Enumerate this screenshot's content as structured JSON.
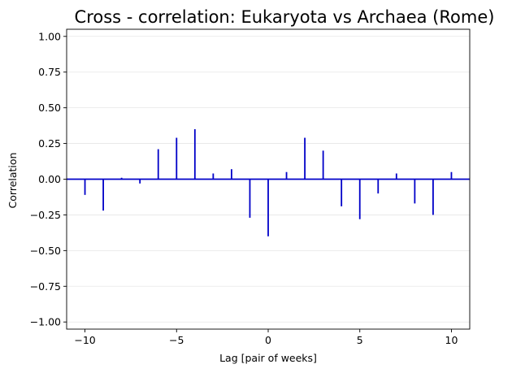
{
  "chart_data": {
    "type": "bar",
    "subtype": "stem",
    "title": "Cross - correlation: Eukaryota vs Archaea (Rome)",
    "xlabel": "Lag [pair of weeks]",
    "ylabel": "Correlation",
    "xlim": [
      -11,
      11
    ],
    "ylim": [
      -1.05,
      1.05
    ],
    "xticks": [
      -10,
      -5,
      0,
      5,
      10
    ],
    "xtick_labels": [
      "−10",
      "−5",
      "0",
      "5",
      "10"
    ],
    "yticks": [
      -1.0,
      -0.75,
      -0.5,
      -0.25,
      0.0,
      0.25,
      0.5,
      0.75,
      1.0
    ],
    "ytick_labels": [
      "−1.00",
      "−0.75",
      "−0.50",
      "−0.25",
      "0.00",
      "0.25",
      "0.50",
      "0.75",
      "1.00"
    ],
    "grid": "horizontal",
    "legend": "none",
    "color": "#0000c8",
    "series": [
      {
        "x": [
          -10,
          -9,
          -8,
          -7,
          -6,
          -5,
          -4,
          -3,
          -2,
          -1,
          0,
          1,
          2,
          3,
          4,
          5,
          6,
          7,
          8,
          9,
          10
        ],
        "values": [
          -0.11,
          -0.22,
          0.01,
          -0.03,
          0.21,
          0.29,
          0.35,
          0.04,
          0.07,
          -0.27,
          -0.4,
          0.05,
          0.29,
          0.2,
          -0.19,
          -0.28,
          -0.1,
          0.04,
          -0.17,
          -0.25,
          0.05
        ]
      }
    ]
  }
}
